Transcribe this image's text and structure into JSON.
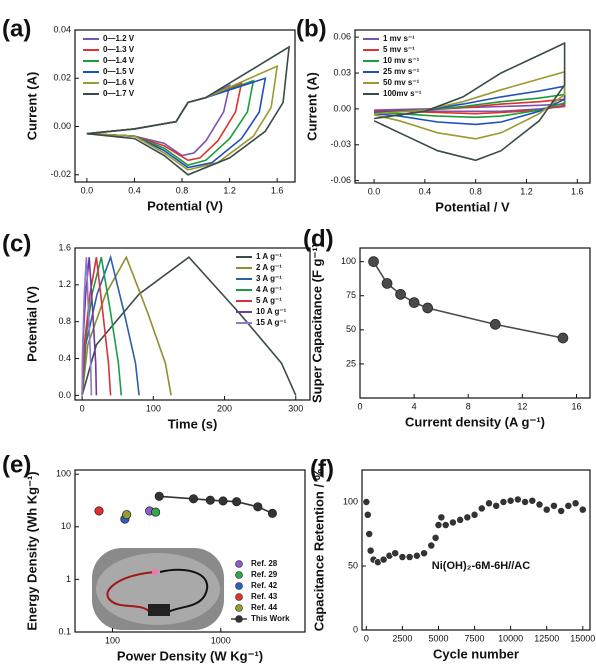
{
  "chart_data": [
    {
      "type": "line",
      "panel_label": "(a)",
      "xlabel": "Potential (V)",
      "ylabel": "Current (A)",
      "legend": "upper left",
      "xlim": [
        -0.1,
        1.75
      ],
      "xticks": [
        {
          "value": 0,
          "label": "0.0"
        },
        0.4,
        0.8,
        1.2,
        1.6
      ],
      "ylim": [
        -0.023,
        0.04
      ],
      "yticks": [
        -0.02,
        {
          "value": 0,
          "label": "0.00"
        },
        0.02,
        0.04
      ],
      "series": [
        {
          "name": "0—1.2 V",
          "color": "#7b52ae",
          "x": [
            0,
            0.4,
            0.75,
            0.8,
            0.85,
            1.0,
            1.2,
            1.15,
            1.0,
            0.9,
            0.8,
            0.65,
            0.4,
            0
          ],
          "values": [
            -0.003,
            -0.001,
            0.002,
            0.006,
            0.01,
            0.012,
            0.017,
            0.006,
            -0.006,
            -0.011,
            -0.012,
            -0.007,
            -0.004,
            -0.003
          ]
        },
        {
          "name": "0—1.3 V",
          "color": "#e03030",
          "x": [
            0,
            0.4,
            0.75,
            0.8,
            0.85,
            1.0,
            1.3,
            1.25,
            1.1,
            0.95,
            0.85,
            0.65,
            0.4,
            0
          ],
          "values": [
            -0.003,
            -0.001,
            0.002,
            0.006,
            0.01,
            0.012,
            0.018,
            0.006,
            -0.006,
            -0.013,
            -0.014,
            -0.008,
            -0.004,
            -0.003
          ]
        },
        {
          "name": "0—1.4 V",
          "color": "#1a9e3a",
          "x": [
            0,
            0.4,
            0.75,
            0.8,
            0.85,
            1.0,
            1.4,
            1.35,
            1.2,
            1.0,
            0.85,
            0.65,
            0.4,
            0
          ],
          "values": [
            -0.003,
            -0.001,
            0.002,
            0.006,
            0.01,
            0.012,
            0.019,
            0.006,
            -0.005,
            -0.014,
            -0.016,
            -0.009,
            -0.004,
            -0.003
          ]
        },
        {
          "name": "0—1.5 V",
          "color": "#1f4fbf",
          "x": [
            0,
            0.4,
            0.75,
            0.8,
            0.85,
            1.0,
            1.5,
            1.45,
            1.3,
            1.05,
            0.85,
            0.65,
            0.4,
            0
          ],
          "values": [
            -0.003,
            -0.001,
            0.002,
            0.006,
            0.01,
            0.012,
            0.02,
            0.006,
            -0.005,
            -0.015,
            -0.017,
            -0.01,
            -0.004,
            -0.003
          ]
        },
        {
          "name": "0—1.6 V",
          "color": "#9a9a30",
          "x": [
            0,
            0.4,
            0.75,
            0.8,
            0.85,
            1.0,
            1.6,
            1.55,
            1.4,
            1.1,
            0.85,
            0.65,
            0.4,
            0
          ],
          "values": [
            -0.003,
            -0.001,
            0.002,
            0.006,
            0.01,
            0.012,
            0.025,
            0.008,
            -0.004,
            -0.015,
            -0.018,
            -0.011,
            -0.004,
            -0.003
          ]
        },
        {
          "name": "0—1.7 V",
          "color": "#3a4a4a",
          "x": [
            0,
            0.4,
            0.75,
            0.8,
            0.85,
            1.0,
            1.7,
            1.65,
            1.5,
            1.2,
            0.85,
            0.65,
            0.4,
            0
          ],
          "values": [
            -0.003,
            -0.001,
            0.002,
            0.006,
            0.01,
            0.012,
            0.033,
            0.01,
            -0.002,
            -0.013,
            -0.02,
            -0.012,
            -0.005,
            -0.003
          ]
        }
      ]
    },
    {
      "type": "line",
      "panel_label": "(b)",
      "xlabel": "Potential / V",
      "ylabel": "Current (A)",
      "legend": "upper left",
      "xlim": [
        -0.15,
        1.7
      ],
      "xticks": [
        {
          "value": 0,
          "label": "0.0"
        },
        0.4,
        0.8,
        1.2,
        1.6
      ],
      "ylim": [
        -0.062,
        0.066
      ],
      "yticks": [
        -0.06,
        -0.03,
        {
          "value": 0,
          "label": "0.00"
        },
        0.03,
        0.06
      ],
      "series": [
        {
          "name": "1   mv s⁻¹",
          "color": "#7b52ae",
          "x": [
            0,
            0.4,
            0.7,
            1.0,
            1.3,
            1.5,
            1.5,
            1.3,
            1.0,
            0.8,
            0.5,
            0.2,
            0
          ],
          "values": [
            -0.001,
            0,
            0.001,
            0.002,
            0.003,
            0.004,
            0.002,
            0,
            -0.002,
            -0.002,
            -0.002,
            -0.001,
            -0.001
          ]
        },
        {
          "name": "5   mv s⁻¹",
          "color": "#e03030",
          "x": [
            0,
            0.4,
            0.7,
            1.0,
            1.3,
            1.5,
            1.5,
            1.3,
            1.0,
            0.8,
            0.5,
            0.2,
            0
          ],
          "values": [
            -0.002,
            -0.001,
            0.001,
            0.004,
            0.006,
            0.008,
            0.003,
            -0.001,
            -0.003,
            -0.004,
            -0.003,
            -0.002,
            -0.002
          ]
        },
        {
          "name": "10  mv s⁻¹",
          "color": "#1a9e3a",
          "x": [
            0,
            0.4,
            0.7,
            1.0,
            1.3,
            1.5,
            1.5,
            1.3,
            1.0,
            0.8,
            0.5,
            0.2,
            0
          ],
          "values": [
            -0.003,
            -0.001,
            0.002,
            0.006,
            0.009,
            0.012,
            0.005,
            -0.001,
            -0.006,
            -0.007,
            -0.006,
            -0.004,
            -0.003
          ]
        },
        {
          "name": "25  mv s⁻¹",
          "color": "#1f4fbf",
          "x": [
            0,
            0.4,
            0.7,
            1.0,
            1.3,
            1.5,
            1.5,
            1.3,
            1.0,
            0.8,
            0.5,
            0.2,
            0
          ],
          "values": [
            -0.003,
            -0.001,
            0.004,
            0.01,
            0.015,
            0.019,
            0.008,
            -0.002,
            -0.011,
            -0.013,
            -0.011,
            -0.006,
            -0.004
          ]
        },
        {
          "name": "50  mv s⁻¹",
          "color": "#9a9a30",
          "x": [
            0,
            0.4,
            0.7,
            1.0,
            1.3,
            1.5,
            1.5,
            1.3,
            1.0,
            0.8,
            0.5,
            0.2,
            0
          ],
          "values": [
            -0.004,
            -0.001,
            0.006,
            0.016,
            0.025,
            0.031,
            0.012,
            -0.004,
            -0.02,
            -0.025,
            -0.02,
            -0.01,
            -0.005
          ]
        },
        {
          "name": "100mv s⁻¹",
          "color": "#3a4a4a",
          "x": [
            0,
            0.4,
            0.7,
            1.0,
            1.3,
            1.5,
            1.5,
            1.3,
            1.0,
            0.8,
            0.5,
            0.2,
            0
          ],
          "values": [
            -0.008,
            -0.002,
            0.01,
            0.03,
            0.045,
            0.055,
            0.02,
            -0.01,
            -0.035,
            -0.043,
            -0.035,
            -0.02,
            -0.01
          ]
        }
      ]
    },
    {
      "type": "line",
      "panel_label": "(c)",
      "xlabel": "Time (s)",
      "ylabel": "Potential (V)",
      "legend": "upper right",
      "xlim": [
        -10,
        320
      ],
      "xticks": [
        0,
        100,
        200,
        300
      ],
      "ylim": [
        -0.05,
        1.6
      ],
      "yticks": [
        {
          "value": 0,
          "label": "0.0"
        },
        0.4,
        0.8,
        1.2,
        1.6
      ],
      "series": [
        {
          "name": "1  A g⁻¹",
          "color": "#3d4a4a",
          "x": [
            0,
            20,
            80,
            150,
            220,
            280,
            300
          ],
          "values": [
            0,
            0.55,
            1.1,
            1.5,
            0.9,
            0.35,
            0
          ]
        },
        {
          "name": "2  A g⁻¹",
          "color": "#8f8f2f",
          "x": [
            0,
            8,
            33,
            62,
            92,
            117,
            125
          ],
          "values": [
            0,
            0.55,
            1.1,
            1.5,
            0.9,
            0.35,
            0
          ]
        },
        {
          "name": "3  A g⁻¹",
          "color": "#2d5fa8",
          "x": [
            0,
            5,
            21,
            40,
            59,
            75,
            80
          ],
          "values": [
            0,
            0.55,
            1.1,
            1.5,
            0.9,
            0.35,
            0
          ]
        },
        {
          "name": "4  A g⁻¹",
          "color": "#1f9a4a",
          "x": [
            0,
            4,
            14,
            27,
            40,
            51,
            55
          ],
          "values": [
            0,
            0.55,
            1.1,
            1.5,
            0.9,
            0.35,
            0
          ]
        },
        {
          "name": "5  A g⁻¹",
          "color": "#d8323a",
          "x": [
            0,
            3,
            11,
            20,
            29,
            37,
            40
          ],
          "values": [
            0,
            0.55,
            1.1,
            1.5,
            0.9,
            0.35,
            0
          ]
        },
        {
          "name": "10  A g⁻¹",
          "color": "#6a3d9a",
          "x": [
            0,
            1,
            5,
            10,
            15,
            19,
            20
          ],
          "values": [
            0,
            0.55,
            1.1,
            1.5,
            0.9,
            0.35,
            0
          ]
        },
        {
          "name": "15  A g⁻¹",
          "color": "#8a7ad0",
          "x": [
            0,
            1,
            3,
            6,
            9,
            12,
            13
          ],
          "values": [
            0,
            0.55,
            1.1,
            1.5,
            0.9,
            0.35,
            0
          ]
        }
      ]
    },
    {
      "type": "line",
      "panel_label": "(d)",
      "xlabel": "Current density (A g⁻¹)",
      "ylabel": "Super Capacitance (F g⁻¹)",
      "xlim": [
        0,
        17
      ],
      "xticks": [
        0,
        4,
        8,
        12,
        16
      ],
      "ylim": [
        0,
        110
      ],
      "yticks": [
        25,
        50,
        75,
        100
      ],
      "series": [
        {
          "color": "#4a4a4a",
          "markers": true,
          "x": [
            1,
            2,
            3,
            4,
            5,
            10,
            15
          ],
          "values": [
            100,
            84,
            76,
            70,
            66,
            54,
            44
          ]
        }
      ]
    },
    {
      "type": "scatter",
      "panel_label": "(e)",
      "xlabel": "Power Density (W Kg⁻¹)",
      "ylabel": "Energy Density (Wh Kg⁻¹)",
      "legend": "lower right",
      "log_x": true,
      "log_y": true,
      "xlim": [
        45,
        6000
      ],
      "xticks": [
        100,
        1000
      ],
      "ylim": [
        0.1,
        120
      ],
      "yticks": [
        0.1,
        1,
        10,
        100
      ],
      "series": [
        {
          "name": "Ref. 28",
          "color": "#8a5cd0",
          "x": [
            220
          ],
          "values": [
            20
          ]
        },
        {
          "name": "Ref. 29",
          "color": "#2fa84a",
          "x": [
            250
          ],
          "values": [
            19
          ]
        },
        {
          "name": "Ref. 42",
          "color": "#2d5fc8",
          "x": [
            130
          ],
          "values": [
            14
          ]
        },
        {
          "name": "Ref. 43",
          "color": "#e03030",
          "x": [
            75
          ],
          "values": [
            20
          ]
        },
        {
          "name": "Ref. 44",
          "color": "#9a9a30",
          "x": [
            135
          ],
          "values": [
            17
          ]
        },
        {
          "name": "This Work",
          "color": "#333333",
          "line": true,
          "x": [
            270,
            560,
            800,
            1050,
            1400,
            2200,
            3000
          ],
          "values": [
            38,
            34,
            32,
            31,
            30,
            24,
            18
          ]
        }
      ]
    },
    {
      "type": "scatter",
      "panel_label": "(f)",
      "xlabel": "Cycle number",
      "ylabel": "Capacitance Retention / %",
      "annotation": "Ni(OH)₂-6M-6H//AC",
      "annotation_color": "#2a9a2a",
      "xlim": [
        -300,
        15500
      ],
      "xticks": [
        0,
        2500,
        5000,
        7500,
        10000,
        12500,
        15000
      ],
      "ylim": [
        0,
        125
      ],
      "yticks": [
        0,
        50,
        100
      ],
      "series": [
        {
          "color": "#333333",
          "x": [
            0,
            100,
            200,
            300,
            500,
            800,
            1200,
            1600,
            2000,
            2500,
            3000,
            3500,
            4000,
            4500,
            4800,
            5000,
            5200,
            5500,
            6000,
            6500,
            7000,
            7500,
            8000,
            8500,
            9000,
            9500,
            10000,
            10500,
            11000,
            11500,
            12000,
            12500,
            13000,
            13500,
            14000,
            14500,
            15000
          ],
          "values": [
            100,
            90,
            75,
            62,
            55,
            53,
            55,
            58,
            60,
            57,
            57,
            58,
            60,
            66,
            72,
            82,
            88,
            82,
            84,
            86,
            88,
            90,
            95,
            99,
            97,
            100,
            101,
            102,
            100,
            101,
            98,
            94,
            97,
            93,
            97,
            99,
            94
          ]
        }
      ]
    }
  ]
}
